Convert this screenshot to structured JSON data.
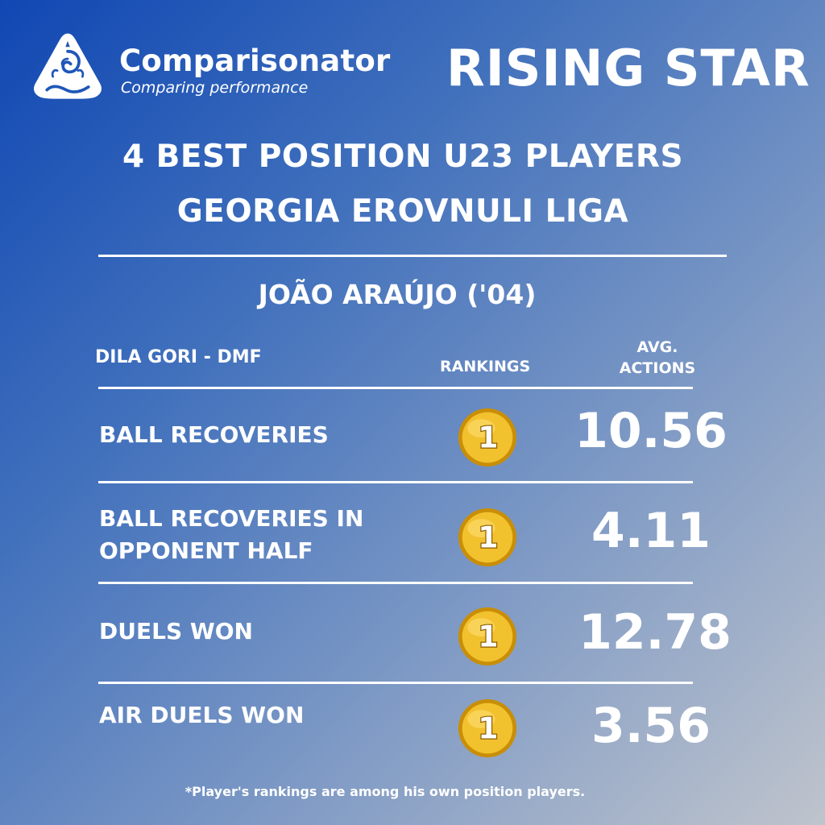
{
  "brand": {
    "name": "Comparisonator",
    "tagline": "Comparing performance"
  },
  "badge": "RISING STAR",
  "title": {
    "line1": "4 BEST POSITION U23 PLAYERS",
    "line2": "GEORGIA EROVNULI LIGA"
  },
  "player": {
    "name": "JOÃO ARAÚJO ('04)",
    "team_position": "DILA GORI - DMF"
  },
  "columns": {
    "rankings": "RANKINGS",
    "avg_actions_line1": "AVG.",
    "avg_actions_line2": "ACTIONS"
  },
  "metrics": [
    {
      "label": "BALL RECOVERIES",
      "rank": "1",
      "value": "10.56"
    },
    {
      "label": "BALL RECOVERIES IN OPPONENT HALF",
      "rank": "1",
      "value": "4.11"
    },
    {
      "label": "DUELS WON",
      "rank": "1",
      "value": "12.78"
    },
    {
      "label": "AIR DUELS WON",
      "rank": "1",
      "value": "3.56"
    }
  ],
  "footnote": "*Player's rankings are among his own position players.",
  "colors": {
    "medal_gold": "#f2c12e",
    "medal_dark": "#c98e07",
    "background_top_left": "#1047b3",
    "background_bottom_right": "#bfc4cc"
  }
}
